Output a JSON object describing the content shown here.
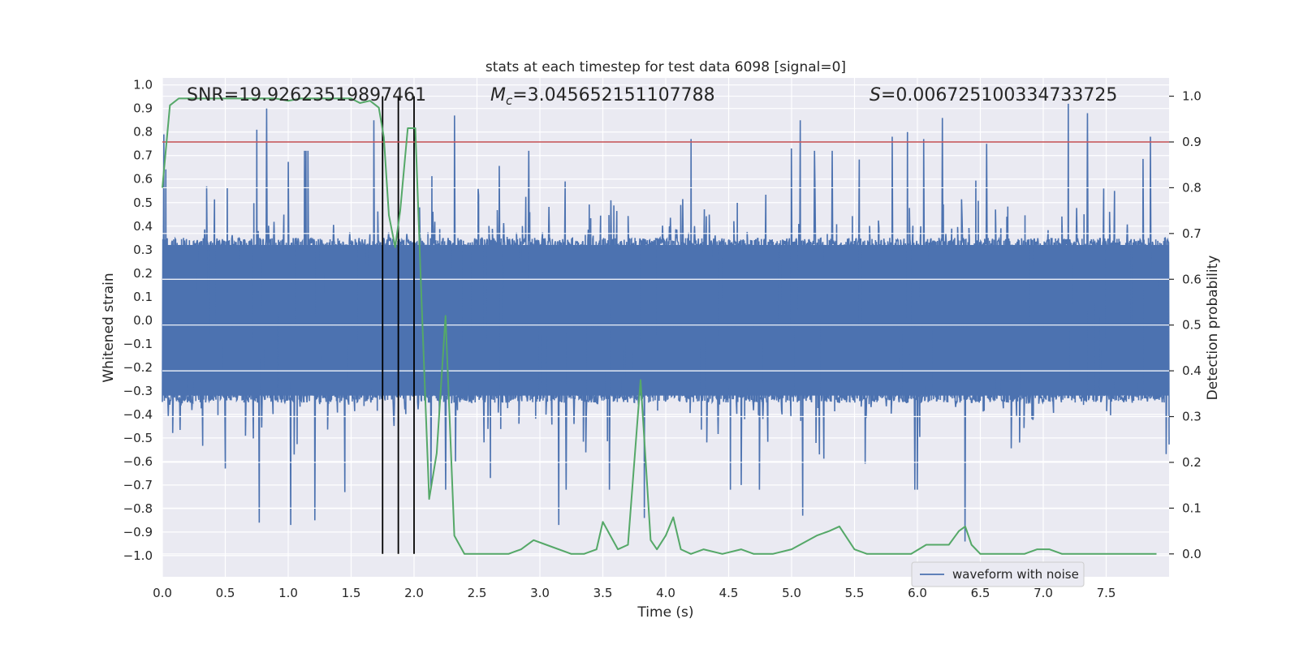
{
  "chart_data": {
    "type": "line",
    "title": "stats at each timestep for test data 6098 [signal=0]",
    "xlabel": "Time (s)",
    "ylabel": "Whitened strain",
    "y2label": "Detection probability",
    "xlim": [
      0.0,
      8.0
    ],
    "ylim": [
      -1.09,
      1.03
    ],
    "y2lim": [
      -0.05,
      1.04
    ],
    "x_ticks": [
      0.0,
      0.5,
      1.0,
      1.5,
      2.0,
      2.5,
      3.0,
      3.5,
      4.0,
      4.5,
      5.0,
      5.5,
      6.0,
      6.5,
      7.0,
      7.5
    ],
    "x_tick_labels": [
      "0.0",
      "0.5",
      "1.0",
      "1.5",
      "2.0",
      "2.5",
      "3.0",
      "3.5",
      "4.0",
      "4.5",
      "5.0",
      "5.5",
      "6.0",
      "6.5",
      "7.0",
      "7.5"
    ],
    "y_ticks": [
      1.0,
      0.9,
      0.8,
      0.7,
      0.6,
      0.5,
      0.4,
      0.3,
      0.2,
      0.1,
      0.0,
      -0.1,
      -0.2,
      -0.3,
      -0.4,
      -0.5,
      -0.6,
      -0.7,
      -0.8,
      -0.9,
      -1.0
    ],
    "y_tick_labels": [
      "1.0",
      "0.9",
      "0.8",
      "0.7",
      "0.6",
      "0.5",
      "0.4",
      "0.3",
      "0.2",
      "0.1",
      "0.0",
      "−0.1",
      "−0.2",
      "−0.3",
      "−0.4",
      "−0.5",
      "−0.6",
      "−0.7",
      "−0.8",
      "−0.9",
      "−1.0"
    ],
    "y2_ticks": [
      1.0,
      0.9,
      0.8,
      0.7,
      0.6,
      0.5,
      0.4,
      0.3,
      0.2,
      0.1,
      0.0
    ],
    "y2_tick_labels": [
      "1.0",
      "0.9",
      "0.8",
      "0.7",
      "0.6",
      "0.5",
      "0.4",
      "0.3",
      "0.2",
      "0.1",
      "0.0"
    ],
    "annotations": {
      "snr": "SNR=19.92623519897461",
      "mc_symbol": "M",
      "mc_sub": "c",
      "mc_value": "=3.045652151107788",
      "s_symbol": "S",
      "s_value": "=0.006725100334733725"
    },
    "legend": {
      "label": "waveform with noise",
      "location": "lower-right"
    },
    "threshold": {
      "value": 0.9,
      "axis": "y2",
      "color": "#c44e52"
    },
    "vertical_lines": [
      1.75,
      1.875,
      2.0
    ],
    "waveform": {
      "name": "waveform with noise",
      "color": "#4c72b0",
      "x_range": [
        0.0,
        8.0
      ],
      "samples": 2048,
      "core_amplitude": 0.32,
      "peak_positive": [
        [
          0.01,
          0.79
        ],
        [
          0.75,
          0.81
        ],
        [
          0.83,
          0.9
        ],
        [
          1.68,
          0.85
        ],
        [
          2.32,
          0.87
        ],
        [
          3.2,
          0.59
        ],
        [
          4.2,
          0.77
        ],
        [
          5.07,
          0.85
        ],
        [
          5.92,
          0.8
        ],
        [
          6.2,
          0.86
        ],
        [
          6.55,
          0.75
        ],
        [
          7.2,
          0.92
        ],
        [
          7.35,
          0.88
        ],
        [
          7.85,
          0.78
        ],
        [
          5.0,
          0.73
        ],
        [
          6.05,
          0.77
        ],
        [
          5.8,
          0.78
        ]
      ],
      "peak_negative": [
        [
          0.5,
          -0.63
        ],
        [
          0.77,
          -0.86
        ],
        [
          1.02,
          -0.87
        ],
        [
          1.21,
          -0.85
        ],
        [
          1.45,
          -0.73
        ],
        [
          3.15,
          -0.87
        ],
        [
          3.83,
          -0.84
        ],
        [
          5.09,
          -0.83
        ],
        [
          6.38,
          -0.94
        ],
        [
          4.6,
          -0.7
        ],
        [
          6.0,
          -0.72
        ]
      ]
    },
    "series": [
      {
        "name": "detection probability",
        "axis": "y2",
        "color": "#55a868",
        "x": [
          0.0,
          0.06,
          0.13,
          0.25,
          0.5,
          0.75,
          0.9,
          1.0,
          1.1,
          1.25,
          1.5,
          1.57,
          1.65,
          1.72,
          1.76,
          1.8,
          1.85,
          1.89,
          1.95,
          2.01,
          2.06,
          2.12,
          2.18,
          2.25,
          2.32,
          2.4,
          2.55,
          2.75,
          2.85,
          2.95,
          3.05,
          3.25,
          3.35,
          3.45,
          3.5,
          3.56,
          3.62,
          3.7,
          3.8,
          3.88,
          3.93,
          4.0,
          4.06,
          4.12,
          4.2,
          4.3,
          4.45,
          4.6,
          4.7,
          4.85,
          5.0,
          5.2,
          5.3,
          5.38,
          5.5,
          5.6,
          5.8,
          5.95,
          6.07,
          6.15,
          6.25,
          6.33,
          6.38,
          6.43,
          6.5,
          6.6,
          6.7,
          6.85,
          6.95,
          7.05,
          7.15,
          7.35,
          7.5,
          7.6,
          7.75,
          7.9
        ],
        "values": [
          0.8,
          0.98,
          0.995,
          0.995,
          0.995,
          0.995,
          0.995,
          0.99,
          0.995,
          0.995,
          0.995,
          0.985,
          0.99,
          0.975,
          0.91,
          0.74,
          0.67,
          0.75,
          0.93,
          0.93,
          0.55,
          0.12,
          0.22,
          0.52,
          0.04,
          0.0,
          0.0,
          0.0,
          0.01,
          0.03,
          0.02,
          0.0,
          0.0,
          0.01,
          0.07,
          0.04,
          0.01,
          0.02,
          0.38,
          0.03,
          0.01,
          0.04,
          0.08,
          0.01,
          0.0,
          0.01,
          0.0,
          0.01,
          0.0,
          0.0,
          0.01,
          0.04,
          0.05,
          0.06,
          0.01,
          0.0,
          0.0,
          0.0,
          0.02,
          0.02,
          0.02,
          0.05,
          0.06,
          0.02,
          0.0,
          0.0,
          0.0,
          0.0,
          0.01,
          0.01,
          0.0,
          0.0,
          0.0,
          0.0,
          0.0,
          0.0
        ]
      }
    ]
  }
}
